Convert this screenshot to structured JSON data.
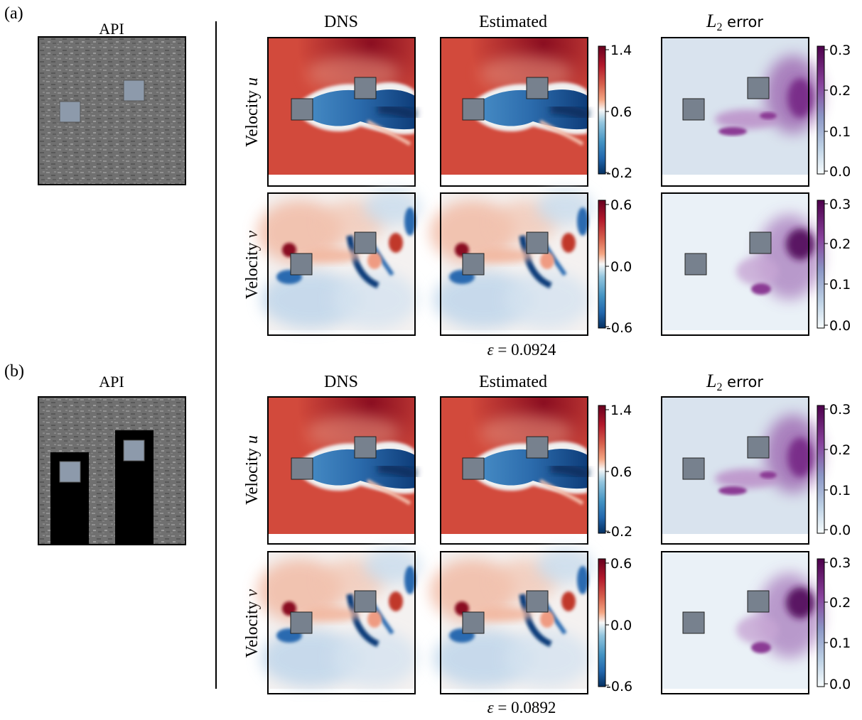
{
  "panels": [
    {
      "label": "(a)",
      "api_title": "API",
      "column_titles": [
        "DNS",
        "Estimated"
      ],
      "error_title": {
        "italic_letter": "L",
        "subscript": "2",
        "suffix": "error"
      },
      "row_labels": [
        {
          "prefix": "Velocity ",
          "var": "u"
        },
        {
          "prefix": "Velocity ",
          "var": "v"
        }
      ],
      "colorbars": {
        "u": [
          "1.4",
          "0.6",
          "-0.2"
        ],
        "v": [
          "0.6",
          "0.0",
          "-0.6"
        ],
        "error": [
          "0.3",
          "0.2",
          "0.1",
          "0.0"
        ]
      },
      "epsilon": {
        "symbol": "ε",
        "value": "0.0924"
      },
      "obstructed": false
    },
    {
      "label": "(b)",
      "api_title": "API",
      "column_titles": [
        "DNS",
        "Estimated"
      ],
      "error_title": {
        "italic_letter": "L",
        "subscript": "2",
        "suffix": "error"
      },
      "row_labels": [
        {
          "prefix": "Velocity ",
          "var": "u"
        },
        {
          "prefix": "Velocity ",
          "var": "v"
        }
      ],
      "colorbars": {
        "u": [
          "1.4",
          "0.6",
          "-0.2"
        ],
        "v": [
          "0.6",
          "0.0",
          "-0.6"
        ],
        "error": [
          "0.3",
          "0.2",
          "0.1",
          "0.0"
        ]
      },
      "epsilon": {
        "symbol": "ε",
        "value": "0.0892"
      },
      "obstructed": true
    }
  ],
  "colors": {
    "red": "#c93a33",
    "deep_red": "#8a0d20",
    "blue": "#2f6fb0",
    "deep_blue": "#0e3d7a",
    "light_blue": "#d7e5f2",
    "error_bg": "#dde6f0",
    "purple": "#6b2a7e",
    "deep_purple": "#4d0a56",
    "cylinder": "#77818e",
    "api_gray": "#7d7d7d",
    "api_square": "#8d9aab"
  }
}
